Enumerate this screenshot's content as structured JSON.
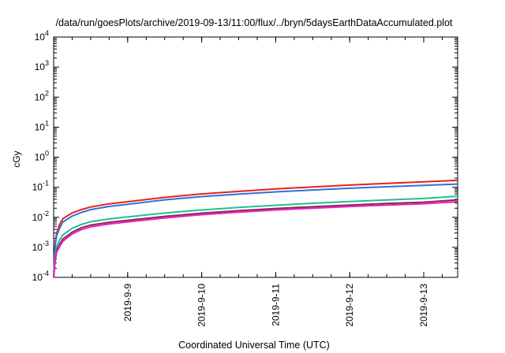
{
  "chart_data": {
    "type": "line",
    "title": "/data/run/goesPlots/archive/2019-09-13/11:00/flux/../bryn/5daysEarthDataAccumulated.plot",
    "xlabel": "Coordinated Universal Time (UTC)",
    "ylabel": "cGy",
    "x_scale": "time",
    "y_scale": "log",
    "xlim": [
      "2019-09-08T00:00",
      "2019-09-13T11:00"
    ],
    "ylim": [
      0.0001,
      10000
    ],
    "grid": false,
    "legend": "none",
    "x_ticks": [
      "2019-9-9",
      "2019-9-10",
      "2019-9-11",
      "2019-9-12",
      "2019-9-13"
    ],
    "x_tick_times": [
      "2019-09-09T00:00",
      "2019-09-10T00:00",
      "2019-09-11T00:00",
      "2019-09-12T00:00",
      "2019-09-13T00:00"
    ],
    "y_ticks": [
      {
        "base": "10",
        "exp": "-4"
      },
      {
        "base": "10",
        "exp": "-3"
      },
      {
        "base": "10",
        "exp": "-2"
      },
      {
        "base": "10",
        "exp": "-1"
      },
      {
        "base": "10",
        "exp": "0"
      },
      {
        "base": "10",
        "exp": "1"
      },
      {
        "base": "10",
        "exp": "2"
      },
      {
        "base": "10",
        "exp": "3"
      },
      {
        "base": "10",
        "exp": "4"
      }
    ],
    "x": [
      "2019-09-08T00:00",
      "2019-09-08T00:30",
      "2019-09-08T01:00",
      "2019-09-08T02:00",
      "2019-09-08T03:00",
      "2019-09-08T06:00",
      "2019-09-08T09:00",
      "2019-09-08T12:00",
      "2019-09-08T18:00",
      "2019-09-09T00:00",
      "2019-09-09T12:00",
      "2019-09-10T00:00",
      "2019-09-10T12:00",
      "2019-09-11T00:00",
      "2019-09-11T12:00",
      "2019-09-12T00:00",
      "2019-09-12T12:00",
      "2019-09-13T00:00",
      "2019-09-13T11:00"
    ],
    "series": [
      {
        "color": "#e8201c",
        "values": [
          0.0001,
          0.0015,
          0.003,
          0.006,
          0.009,
          0.014,
          0.018,
          0.022,
          0.028,
          0.033,
          0.046,
          0.06,
          0.073,
          0.088,
          0.102,
          0.118,
          0.134,
          0.152,
          0.17
        ]
      },
      {
        "color": "#2f6fe0",
        "values": [
          0.0001,
          0.0012,
          0.0025,
          0.0045,
          0.007,
          0.011,
          0.0145,
          0.018,
          0.023,
          0.027,
          0.038,
          0.049,
          0.059,
          0.07,
          0.081,
          0.093,
          0.104,
          0.115,
          0.127
        ]
      },
      {
        "color": "#1fbf9a",
        "values": [
          0.0001,
          0.0006,
          0.0011,
          0.0018,
          0.0026,
          0.0043,
          0.0058,
          0.0071,
          0.0088,
          0.0103,
          0.0138,
          0.0175,
          0.0212,
          0.0252,
          0.0292,
          0.0335,
          0.0378,
          0.0424,
          0.0505
        ]
      },
      {
        "color": "#8b2a4a",
        "values": [
          0.0001,
          0.0004,
          0.0008,
          0.0013,
          0.0019,
          0.0032,
          0.0045,
          0.0055,
          0.0068,
          0.0079,
          0.0107,
          0.0137,
          0.0166,
          0.0196,
          0.0225,
          0.0256,
          0.0287,
          0.0318,
          0.038
        ]
      },
      {
        "color": "#e820c8",
        "values": [
          0.0001,
          0.00035,
          0.0007,
          0.0011,
          0.0016,
          0.0028,
          0.0039,
          0.0048,
          0.006,
          0.007,
          0.0095,
          0.0122,
          0.0148,
          0.0175,
          0.0201,
          0.0228,
          0.0255,
          0.0282,
          0.033
        ]
      }
    ]
  }
}
